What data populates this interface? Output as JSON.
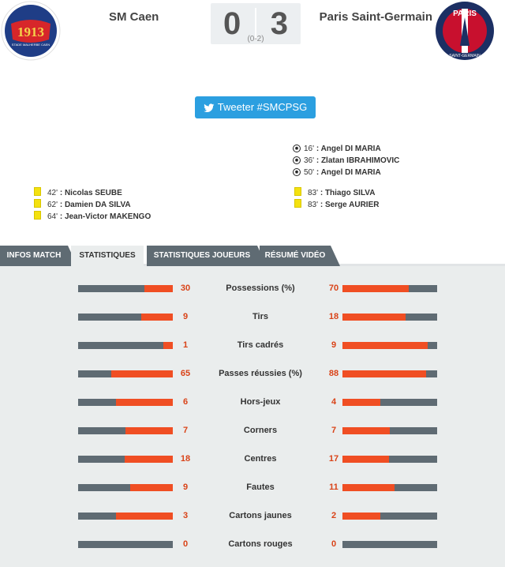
{
  "match": {
    "home_team": "SM Caen",
    "away_team": "Paris Saint-Germain",
    "home_score": "0",
    "away_score": "3",
    "halftime": "(0-2)",
    "home_logo_text": "1913",
    "home_logo_subtext": "STADE MALHERBE CAEN",
    "away_logo_text": "PARIS",
    "away_logo_subtext": "SAINT-GERMAIN"
  },
  "tweet": {
    "label": "Tweeter #SMCPSG"
  },
  "events": {
    "away_goals": [
      {
        "minute": "16'",
        "player": "Angel DI MARIA"
      },
      {
        "minute": "36'",
        "player": "Zlatan IBRAHIMOVIC"
      },
      {
        "minute": "50'",
        "player": "Angel DI MARIA"
      }
    ],
    "home_cards": [
      {
        "minute": "42'",
        "player": "Nicolas SEUBE"
      },
      {
        "minute": "62'",
        "player": "Damien DA SILVA"
      },
      {
        "minute": "64'",
        "player": "Jean-Victor MAKENGO"
      }
    ],
    "away_cards": [
      {
        "minute": "83'",
        "player": "Thiago SILVA"
      },
      {
        "minute": "83'",
        "player": "Serge AURIER"
      }
    ]
  },
  "tabs": [
    {
      "label": "INFOS MATCH",
      "active": false
    },
    {
      "label": "STATISTIQUES",
      "active": true
    },
    {
      "label": "STATISTIQUES JOUEURS",
      "active": false
    },
    {
      "label": "RÉSUMÉ VIDÉO",
      "active": false
    }
  ],
  "stats": [
    {
      "label": "Possessions (%)",
      "home": "30",
      "away": "70",
      "home_fill": 0.3,
      "away_fill": 0.7
    },
    {
      "label": "Tirs",
      "home": "9",
      "away": "18",
      "home_fill": 0.33,
      "away_fill": 0.67
    },
    {
      "label": "Tirs cadrés",
      "home": "1",
      "away": "9",
      "home_fill": 0.1,
      "away_fill": 0.9
    },
    {
      "label": "Passes réussies (%)",
      "home": "65",
      "away": "88",
      "home_fill": 0.65,
      "away_fill": 0.88
    },
    {
      "label": "Hors-jeux",
      "home": "6",
      "away": "4",
      "home_fill": 0.6,
      "away_fill": 0.4
    },
    {
      "label": "Corners",
      "home": "7",
      "away": "7",
      "home_fill": 0.5,
      "away_fill": 0.5
    },
    {
      "label": "Centres",
      "home": "18",
      "away": "17",
      "home_fill": 0.51,
      "away_fill": 0.49
    },
    {
      "label": "Fautes",
      "home": "9",
      "away": "11",
      "home_fill": 0.45,
      "away_fill": 0.55
    },
    {
      "label": "Cartons jaunes",
      "home": "3",
      "away": "2",
      "home_fill": 0.6,
      "away_fill": 0.4
    },
    {
      "label": "Cartons rouges",
      "home": "0",
      "away": "0",
      "home_fill": 0,
      "away_fill": 0
    }
  ],
  "colors": {
    "accent": "#f04e23",
    "bar_base": "#5f6b73",
    "tweet": "#2b9fe0",
    "card": "#f4e10f",
    "panel": "#eaeded"
  }
}
